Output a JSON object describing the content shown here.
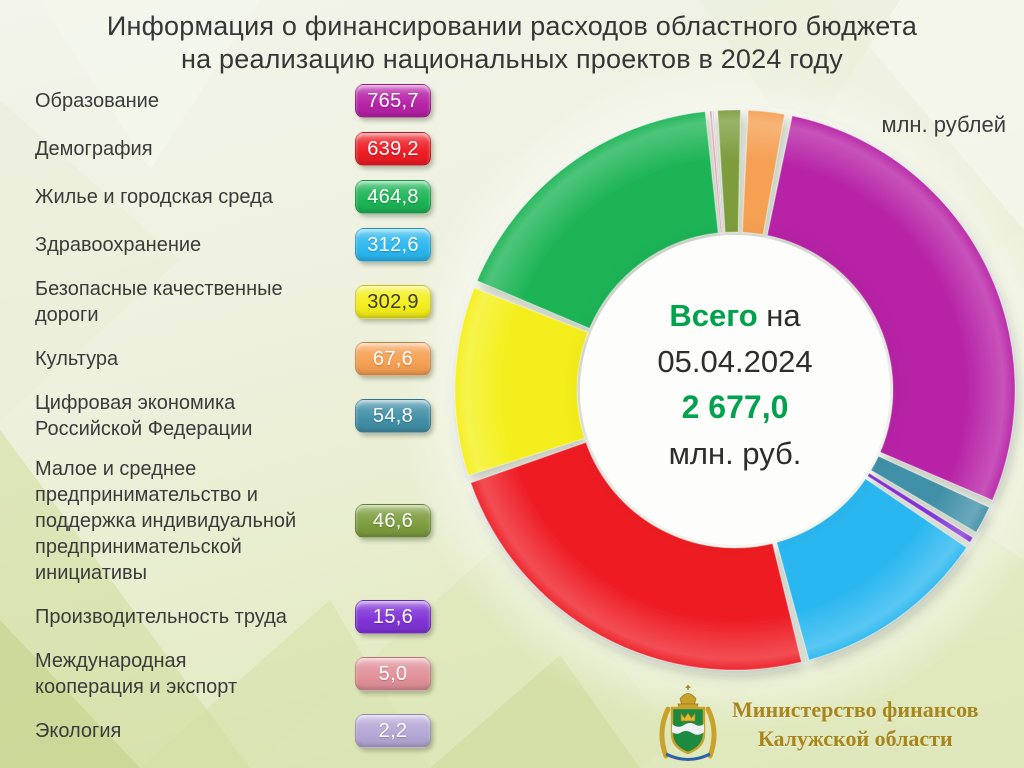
{
  "title": {
    "line1": "Информация о финансировании расходов областного бюджета",
    "line2": "на реализацию национальных проектов в 2024 году"
  },
  "units_label": "млн. рублей",
  "donut_center": {
    "total_prefix_bold": "Всего",
    "total_prefix_rest": "на",
    "date": "05.04.2024",
    "total_value": "2 677,0",
    "total_units": "млн. руб."
  },
  "footer": {
    "ministry_line1": "Министерство финансов",
    "ministry_line2": "Калужской области",
    "emblem_icon": "kaluga-coat-of-arms"
  },
  "accent_green": "#00a24d",
  "chart_data": {
    "type": "pie",
    "subtype": "donut",
    "title": "Информация о финансировании расходов областного бюджета на реализацию национальных проектов в 2024 году",
    "units": "млн. рублей",
    "as_of_date": "05.04.2024",
    "total": 2677.0,
    "total_display": "2 677,0",
    "legend_position": "left",
    "categories": [
      "Образование",
      "Демография",
      "Жилье и городская среда",
      "Здравоохранение",
      "Безопасные качественные дороги",
      "Культура",
      "Цифровая экономика Российской Федерации",
      "Малое и среднее предпринимательство и поддержка индивидуальной предпринимательской инициативы",
      "Производительность труда",
      "Международная кооперация и экспорт",
      "Экология"
    ],
    "legend_labels_wrapped": [
      "Образование",
      "Демография",
      "Жилье и городская среда",
      "Здравоохранение",
      "Безопасные качественные\nдороги",
      "Культура",
      "Цифровая экономика\nРоссийской Федерации",
      "Малое и среднее\nпредпринимательство и\nподдержка индивидуальной\nпредпринимательской\nинициативы",
      "Производительность труда",
      "Международная\nкооперация и экспорт",
      "Экология"
    ],
    "values": [
      765.7,
      639.2,
      464.8,
      312.6,
      302.9,
      67.6,
      54.8,
      46.6,
      15.6,
      5.0,
      2.2
    ],
    "value_labels": [
      "765,7",
      "639,2",
      "464,8",
      "312,6",
      "302,9",
      "67,6",
      "54,8",
      "46,6",
      "15,6",
      "5,0",
      "2,2"
    ],
    "colors": [
      "#b722a6",
      "#ee1c24",
      "#1cb455",
      "#2ab7f0",
      "#f4ef1a",
      "#f5a052",
      "#4190a8",
      "#7d9d3e",
      "#8033d6",
      "#e2919a",
      "#b5a7d6"
    ],
    "clockwise_order": [
      0,
      6,
      8,
      3,
      1,
      4,
      2,
      9,
      10,
      7,
      5
    ],
    "start_angle_deg": 11,
    "pad_angle_deg": 1.6,
    "inner_radius": 158,
    "outer_radius": 280,
    "gridlines": false
  }
}
